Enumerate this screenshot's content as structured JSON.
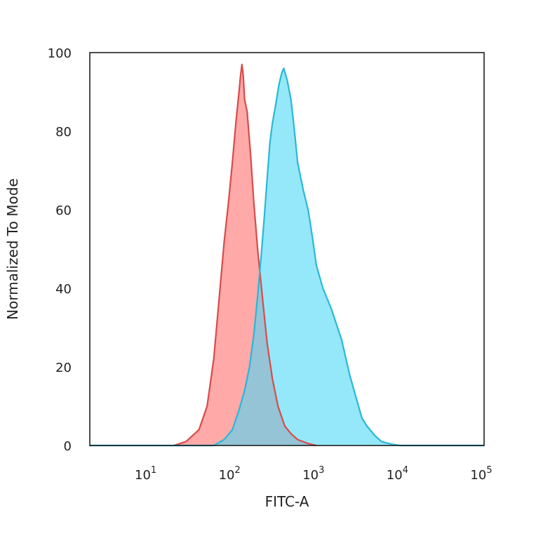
{
  "chart_data": {
    "type": "area",
    "xlabel": "FITC-A",
    "ylabel": "Normalized To Mode",
    "x_scale": "log",
    "xlim": [
      2,
      100000
    ],
    "ylim": [
      0,
      100
    ],
    "grid": false,
    "legend": "none",
    "y_ticks": [
      0,
      20,
      40,
      60,
      80,
      100
    ],
    "x_ticks": [
      {
        "value": 10,
        "base": "10",
        "exp": "1"
      },
      {
        "value": 100,
        "base": "10",
        "exp": "2"
      },
      {
        "value": 1000,
        "base": "10",
        "exp": "3"
      },
      {
        "value": 10000,
        "base": "10",
        "exp": "4"
      },
      {
        "value": 100000,
        "base": "10",
        "exp": "5"
      }
    ],
    "series": [
      {
        "color": "#d94a4a",
        "fill": "#ff6b6b",
        "x": [
          20,
          28,
          40,
          50,
          60,
          70,
          80,
          90,
          100,
          110,
          120,
          125,
          130,
          135,
          140,
          150,
          165,
          180,
          200,
          230,
          260,
          300,
          350,
          420,
          500,
          600,
          800,
          1000
        ],
        "y": [
          0,
          1,
          4,
          10,
          22,
          38,
          52,
          62,
          72,
          82,
          90,
          94,
          97,
          94,
          88,
          85,
          74,
          62,
          50,
          37,
          26,
          17,
          10,
          5,
          3,
          1.5,
          0.5,
          0
        ]
      },
      {
        "color": "#2ab7d6",
        "fill": "#46d8f4",
        "x": [
          2,
          60,
          80,
          100,
          120,
          140,
          160,
          180,
          200,
          220,
          240,
          260,
          280,
          300,
          330,
          360,
          390,
          410,
          450,
          500,
          550,
          600,
          700,
          800,
          900,
          1000,
          1200,
          1500,
          2000,
          2500,
          3000,
          3500,
          4000,
          5000,
          6000,
          8000,
          10000,
          100000
        ],
        "y": [
          0,
          0,
          1.5,
          4,
          9,
          14,
          20,
          28,
          38,
          48,
          58,
          68,
          77,
          82,
          87,
          92,
          95,
          96,
          93,
          88,
          80,
          72,
          65,
          60,
          53,
          46,
          40,
          35,
          27,
          18,
          12,
          7,
          5,
          2.5,
          1,
          0.3,
          0,
          0
        ]
      }
    ]
  }
}
